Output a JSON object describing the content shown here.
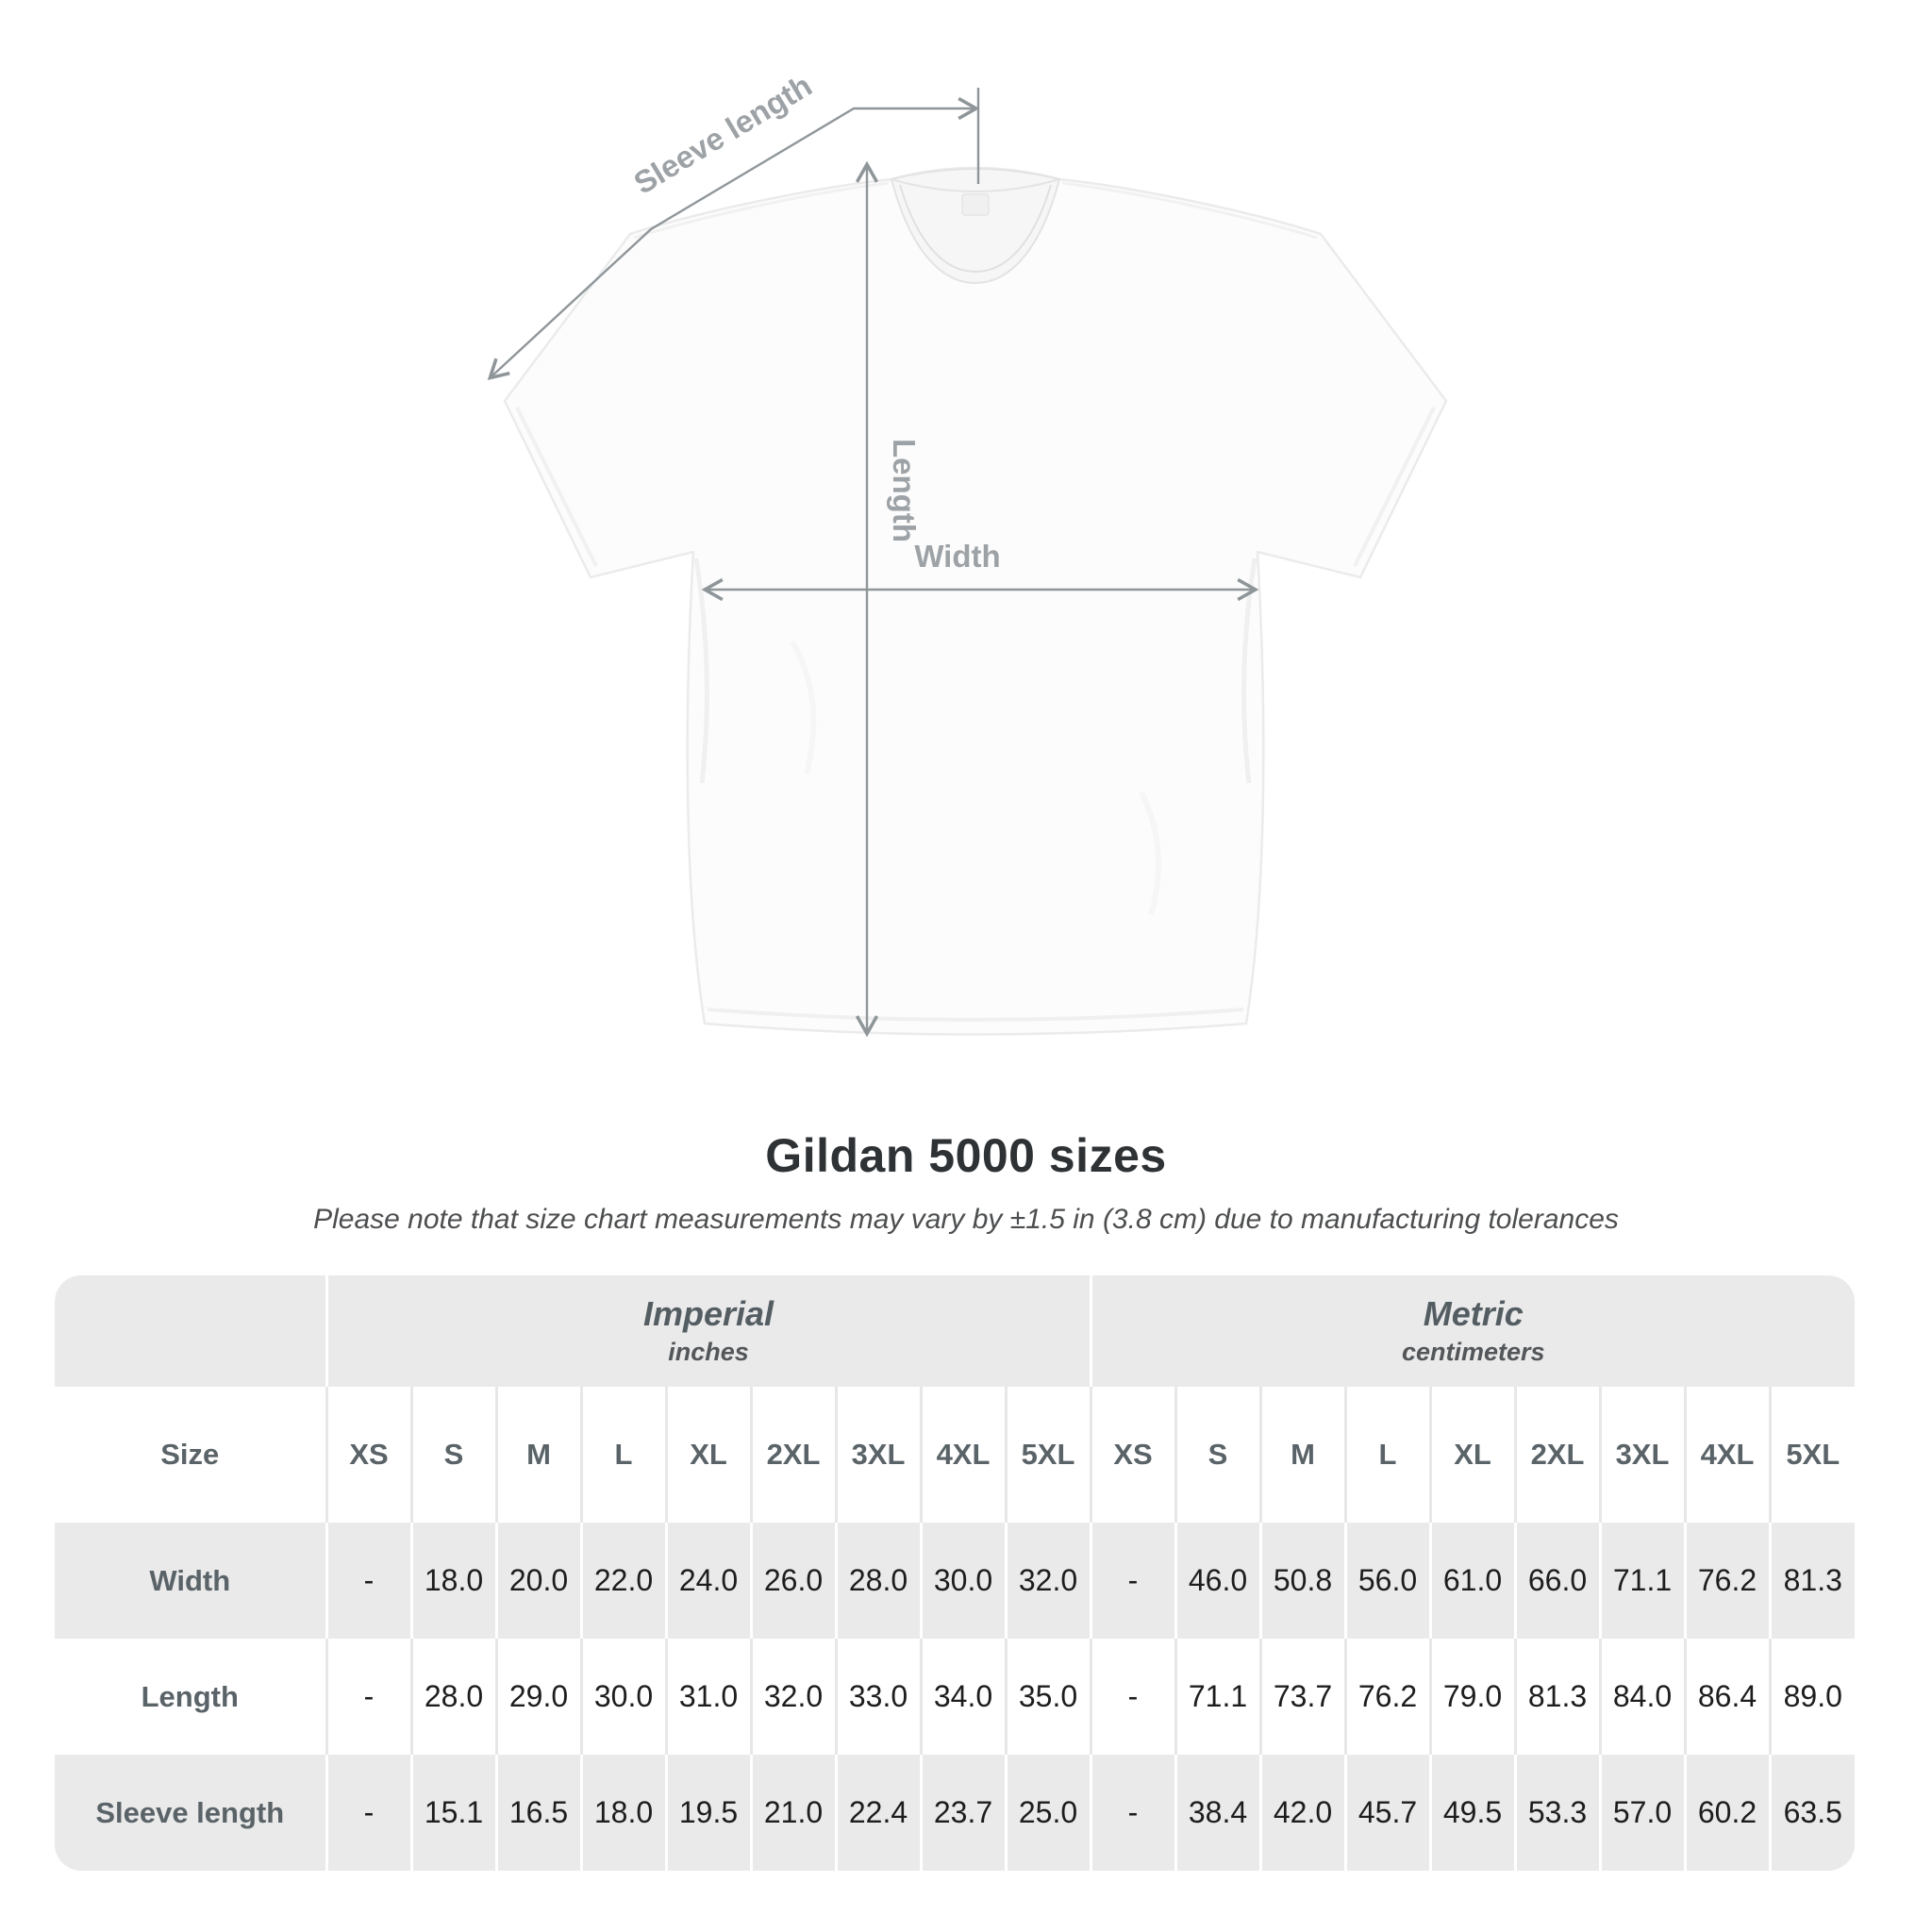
{
  "diagram": {
    "sleeve_length_label": "Sleeve length",
    "length_label": "Length",
    "width_label": "Width"
  },
  "title": "Gildan 5000 sizes",
  "subtitle": "Please note that size chart measurements may vary by ±1.5 in (3.8 cm) due to manufacturing tolerances",
  "table": {
    "size_col_header": "Size",
    "groups": [
      {
        "name": "Imperial",
        "unit": "inches"
      },
      {
        "name": "Metric",
        "unit": "centimeters"
      }
    ],
    "sizes": [
      "XS",
      "S",
      "M",
      "L",
      "XL",
      "2XL",
      "3XL",
      "4XL",
      "5XL"
    ],
    "rows": [
      {
        "label": "Width",
        "imperial": [
          "-",
          "18.0",
          "20.0",
          "22.0",
          "24.0",
          "26.0",
          "28.0",
          "30.0",
          "32.0"
        ],
        "metric": [
          "-",
          "46.0",
          "50.8",
          "56.0",
          "61.0",
          "66.0",
          "71.1",
          "76.2",
          "81.3"
        ]
      },
      {
        "label": "Length",
        "imperial": [
          "-",
          "28.0",
          "29.0",
          "30.0",
          "31.0",
          "32.0",
          "33.0",
          "34.0",
          "35.0"
        ],
        "metric": [
          "-",
          "71.1",
          "73.7",
          "76.2",
          "79.0",
          "81.3",
          "84.0",
          "86.4",
          "89.0"
        ]
      },
      {
        "label": "Sleeve length",
        "imperial": [
          "-",
          "15.1",
          "16.5",
          "18.0",
          "19.5",
          "21.0",
          "22.4",
          "23.7",
          "25.0"
        ],
        "metric": [
          "-",
          "38.4",
          "42.0",
          "45.7",
          "49.5",
          "53.3",
          "57.0",
          "60.2",
          "63.5"
        ]
      }
    ]
  },
  "colors": {
    "band_gray": "#eaeaea",
    "measure_line": "#8f969a",
    "measure_label": "#9da2a6",
    "header_text": "#545d62",
    "value_text": "#1d1d1d"
  },
  "chart_data": {
    "type": "table",
    "title": "Gildan 5000 sizes",
    "note": "Please note that size chart measurements may vary by ±1.5 in (3.8 cm) due to manufacturing tolerances",
    "column_groups": [
      "Imperial (inches)",
      "Metric (centimeters)"
    ],
    "columns": [
      "Size",
      "XS",
      "S",
      "M",
      "L",
      "XL",
      "2XL",
      "3XL",
      "4XL",
      "5XL",
      "XS",
      "S",
      "M",
      "L",
      "XL",
      "2XL",
      "3XL",
      "4XL",
      "5XL"
    ],
    "rows": [
      [
        "Width",
        "-",
        18.0,
        20.0,
        22.0,
        24.0,
        26.0,
        28.0,
        30.0,
        32.0,
        "-",
        46.0,
        50.8,
        56.0,
        61.0,
        66.0,
        71.1,
        76.2,
        81.3
      ],
      [
        "Length",
        "-",
        28.0,
        29.0,
        30.0,
        31.0,
        32.0,
        33.0,
        34.0,
        35.0,
        "-",
        71.1,
        73.7,
        76.2,
        79.0,
        81.3,
        84.0,
        86.4,
        89.0
      ],
      [
        "Sleeve length",
        "-",
        15.1,
        16.5,
        18.0,
        19.5,
        21.0,
        22.4,
        23.7,
        25.0,
        "-",
        38.4,
        42.0,
        45.7,
        49.5,
        53.3,
        57.0,
        60.2,
        63.5
      ]
    ]
  }
}
